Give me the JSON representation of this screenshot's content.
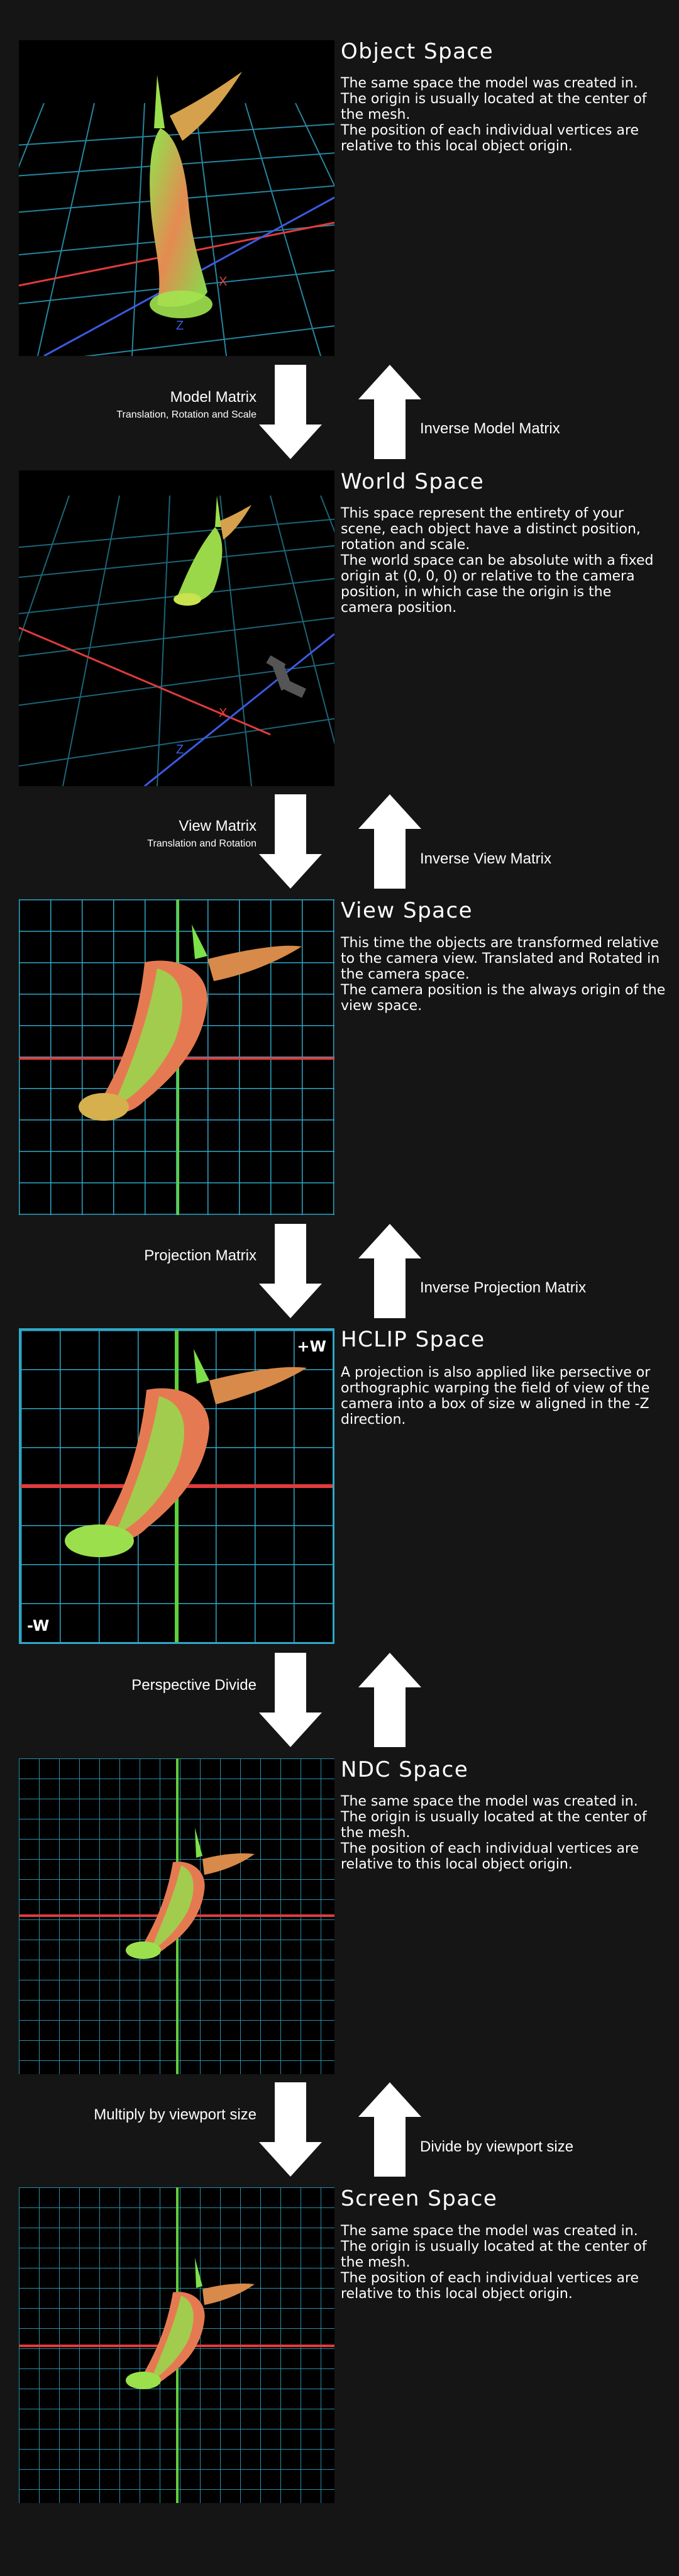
{
  "sections": [
    {
      "title": "Object Space",
      "desc": [
        "The same space the model was created in.",
        "The origin is usually located at the center of the mesh.",
        "The position of each individual vertices are relative to this local object origin."
      ],
      "axis_labels": {
        "x": "X",
        "z": "Z"
      }
    },
    {
      "title": "World Space",
      "desc": [
        "This space represent the entirety of your scene, each object have a distinct position, rotation and scale.",
        "The world space can be absolute with a fixed origin at (0, 0, 0) or relative to the camera position, in which case the origin is the camera position."
      ],
      "axis_labels": {
        "x": "X",
        "z": "Z"
      }
    },
    {
      "title": "View Space",
      "desc": [
        "This time the objects are transformed relative to the camera view. Translated and Rotated in the camera space.",
        "The camera position is the always origin of the view space."
      ]
    },
    {
      "title": "HCLIP Space",
      "desc": [
        "A projection is also applied like persective or orthographic warping the field of view of the camera into a box of size w aligned in the -Z direction."
      ],
      "corner_pos": "+W",
      "corner_neg": "-W"
    },
    {
      "title": "NDC Space",
      "desc": [
        "The same space the model was created in.",
        "The origin is usually located at the center of the mesh.",
        "The position of each individual vertices are relative to this local object origin."
      ]
    },
    {
      "title": "Screen Space",
      "desc": [
        "The same space the model was created in.",
        "The origin is usually located at the center of the mesh.",
        "The position of each individual vertices are relative to this local object origin."
      ]
    }
  ],
  "transitions": [
    {
      "forward": "Model Matrix",
      "forward_sub": "Translation, Rotation and Scale",
      "inverse": "Inverse Model Matrix"
    },
    {
      "forward": "View Matrix",
      "forward_sub": "Translation and Rotation",
      "inverse": "Inverse View Matrix"
    },
    {
      "forward": "Projection Matrix",
      "forward_sub": "",
      "inverse": "Inverse Projection Matrix"
    },
    {
      "forward": "Perspective Divide",
      "forward_sub": "",
      "inverse": ""
    },
    {
      "forward": "Multiply by viewport size",
      "forward_sub": "",
      "inverse": "Divide by viewport size"
    }
  ],
  "colors": {
    "background": "#151515",
    "grid": "#2fa8c8",
    "grid_dim": "#1f6f86",
    "x_axis": "#e23b3b",
    "z_axis": "#3b5be2",
    "y_axis": "#5fcf3a",
    "statue_a": "#7de24a",
    "statue_b": "#e2704a",
    "arrow": "#ffffff"
  }
}
